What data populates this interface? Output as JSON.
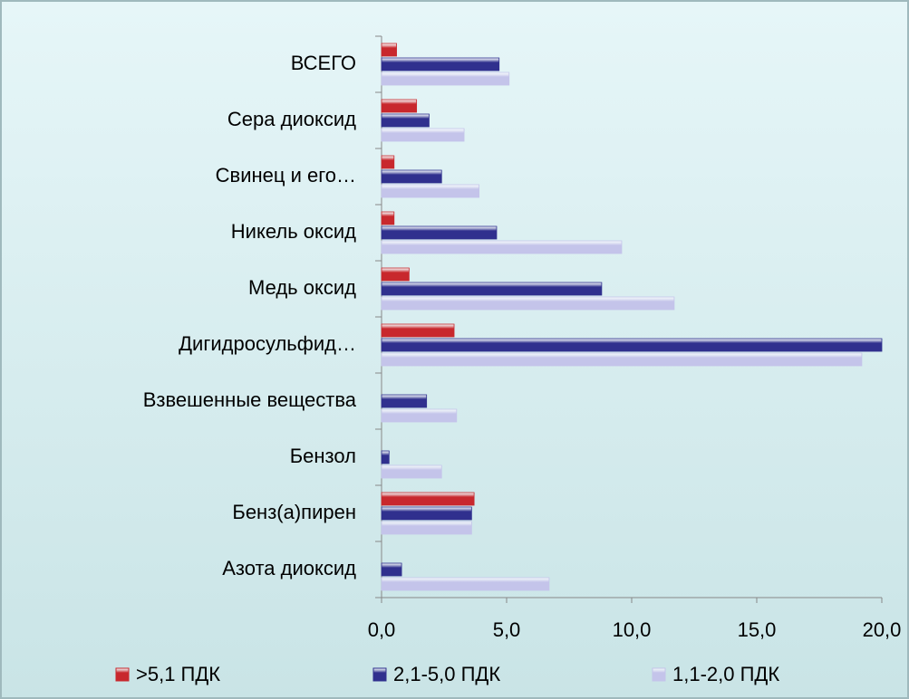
{
  "chart_data": {
    "type": "bar",
    "orientation": "horizontal",
    "categories": [
      "ВСЕГО",
      "Сера диоксид",
      "Свинец и его…",
      "Никель оксид",
      "Медь оксид",
      "Дигидросульфид…",
      "Взвешенные вещества",
      "Бензол",
      "Бенз(а)пирен",
      "Азота диоксид"
    ],
    "series": [
      {
        "name": ">5,1 ПДК",
        "color": "#c8282d",
        "values": [
          0.6,
          1.4,
          0.5,
          0.5,
          1.1,
          2.9,
          null,
          null,
          3.7,
          null
        ]
      },
      {
        "name": "2,1-5,0 ПДК",
        "color": "#30308e",
        "values": [
          4.7,
          1.9,
          2.4,
          4.6,
          8.8,
          20.0,
          1.8,
          0.3,
          3.6,
          0.8
        ]
      },
      {
        "name": "1,1-2,0 ПДК",
        "color": "#c4c4ea",
        "values": [
          5.1,
          3.3,
          3.9,
          9.6,
          11.7,
          19.2,
          3.0,
          2.4,
          3.6,
          6.7
        ]
      }
    ],
    "xlim": [
      0,
      20
    ],
    "xticks": [
      {
        "value": 0,
        "label": "0,0"
      },
      {
        "value": 5,
        "label": "5,0"
      },
      {
        "value": 10,
        "label": "10,0"
      },
      {
        "value": 15,
        "label": "15,0"
      },
      {
        "value": 20,
        "label": "20,0"
      }
    ],
    "legend": "bottom"
  }
}
